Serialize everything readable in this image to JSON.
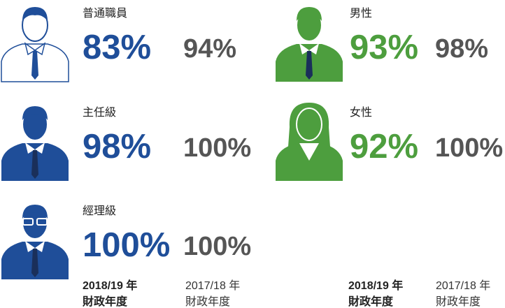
{
  "left": [
    {
      "label": "普通職員",
      "current": "83%",
      "previous": "94%"
    },
    {
      "label": "主任級",
      "current": "98%",
      "previous": "100%"
    },
    {
      "label": "經理級",
      "current": "100%",
      "previous": "100%"
    }
  ],
  "right": [
    {
      "label": "男性",
      "current": "93%",
      "previous": "98%"
    },
    {
      "label": "女性",
      "current": "92%",
      "previous": "100%"
    }
  ],
  "legend": {
    "current": [
      "2018/19 年",
      "財政年度"
    ],
    "previous": [
      "2017/18 年",
      "財政年度"
    ]
  }
}
